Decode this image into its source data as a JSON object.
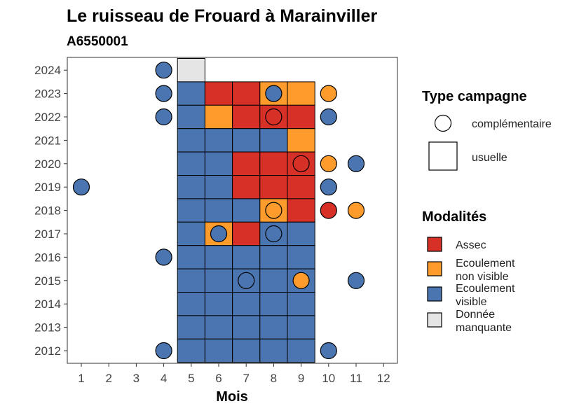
{
  "chart_data": {
    "type": "heatmap",
    "title": "Le ruisseau de Frouard à Marainviller",
    "subtitle": "A6550001",
    "xlabel": "Mois",
    "ylabel": "",
    "x_ticks": [
      "1",
      "2",
      "3",
      "4",
      "5",
      "6",
      "7",
      "8",
      "9",
      "10",
      "11",
      "12"
    ],
    "y_ticks": [
      "2012",
      "2013",
      "2014",
      "2015",
      "2016",
      "2017",
      "2018",
      "2019",
      "2020",
      "2021",
      "2022",
      "2023",
      "2024"
    ],
    "xlim": [
      1,
      12
    ],
    "ylim": [
      2012,
      2024
    ],
    "colors": {
      "Assec": "#d73027",
      "Ecoulement non visible": "#fd9c2c",
      "Ecoulement visible": "#4a75b0",
      "Donnée manquante": "#e5e5e5"
    },
    "usual_campaign": [
      {
        "year": 2024,
        "cells": [
          [
            "5",
            "Donnée manquante"
          ]
        ]
      },
      {
        "year": 2023,
        "cells": [
          [
            "5",
            "Ecoulement visible"
          ],
          [
            "6",
            "Assec"
          ],
          [
            "7",
            "Assec"
          ],
          [
            "8",
            "Ecoulement non visible"
          ],
          [
            "9",
            "Ecoulement non visible"
          ]
        ]
      },
      {
        "year": 2022,
        "cells": [
          [
            "5",
            "Ecoulement visible"
          ],
          [
            "6",
            "Ecoulement non visible"
          ],
          [
            "7",
            "Assec"
          ],
          [
            "8",
            "Assec"
          ],
          [
            "9",
            "Assec"
          ]
        ]
      },
      {
        "year": 2021,
        "cells": [
          [
            "5",
            "Ecoulement visible"
          ],
          [
            "6",
            "Ecoulement visible"
          ],
          [
            "7",
            "Ecoulement visible"
          ],
          [
            "8",
            "Ecoulement visible"
          ],
          [
            "9",
            "Ecoulement non visible"
          ]
        ]
      },
      {
        "year": 2020,
        "cells": [
          [
            "5",
            "Ecoulement visible"
          ],
          [
            "6",
            "Ecoulement visible"
          ],
          [
            "7",
            "Assec"
          ],
          [
            "8",
            "Assec"
          ],
          [
            "9",
            "Assec"
          ]
        ]
      },
      {
        "year": 2019,
        "cells": [
          [
            "5",
            "Ecoulement visible"
          ],
          [
            "6",
            "Ecoulement visible"
          ],
          [
            "7",
            "Assec"
          ],
          [
            "8",
            "Assec"
          ],
          [
            "9",
            "Assec"
          ]
        ]
      },
      {
        "year": 2018,
        "cells": [
          [
            "5",
            "Ecoulement visible"
          ],
          [
            "6",
            "Ecoulement visible"
          ],
          [
            "7",
            "Ecoulement visible"
          ],
          [
            "8",
            "Ecoulement non visible"
          ],
          [
            "9",
            "Assec"
          ]
        ]
      },
      {
        "year": 2017,
        "cells": [
          [
            "5",
            "Ecoulement visible"
          ],
          [
            "6",
            "Ecoulement non visible"
          ],
          [
            "7",
            "Assec"
          ],
          [
            "8",
            "Ecoulement visible"
          ],
          [
            "9",
            "Ecoulement visible"
          ]
        ]
      },
      {
        "year": 2016,
        "cells": [
          [
            "5",
            "Ecoulement visible"
          ],
          [
            "6",
            "Ecoulement visible"
          ],
          [
            "7",
            "Ecoulement visible"
          ],
          [
            "8",
            "Ecoulement visible"
          ],
          [
            "9",
            "Ecoulement visible"
          ]
        ]
      },
      {
        "year": 2015,
        "cells": [
          [
            "5",
            "Ecoulement visible"
          ],
          [
            "6",
            "Ecoulement visible"
          ],
          [
            "7",
            "Ecoulement visible"
          ],
          [
            "8",
            "Ecoulement visible"
          ],
          [
            "9",
            "Ecoulement visible"
          ]
        ]
      },
      {
        "year": 2014,
        "cells": [
          [
            "5",
            "Ecoulement visible"
          ],
          [
            "6",
            "Ecoulement visible"
          ],
          [
            "7",
            "Ecoulement visible"
          ],
          [
            "8",
            "Ecoulement visible"
          ],
          [
            "9",
            "Ecoulement visible"
          ]
        ]
      },
      {
        "year": 2013,
        "cells": [
          [
            "5",
            "Ecoulement visible"
          ],
          [
            "6",
            "Ecoulement visible"
          ],
          [
            "7",
            "Ecoulement visible"
          ],
          [
            "8",
            "Ecoulement visible"
          ],
          [
            "9",
            "Ecoulement visible"
          ]
        ]
      },
      {
        "year": 2012,
        "cells": [
          [
            "5",
            "Ecoulement visible"
          ],
          [
            "6",
            "Ecoulement visible"
          ],
          [
            "7",
            "Ecoulement visible"
          ],
          [
            "8",
            "Ecoulement visible"
          ],
          [
            "9",
            "Ecoulement visible"
          ]
        ]
      }
    ],
    "complementary_campaign": [
      {
        "year": 2024,
        "month": 4,
        "status": "Ecoulement visible"
      },
      {
        "year": 2023,
        "month": 4,
        "status": "Ecoulement visible"
      },
      {
        "year": 2023,
        "month": 8,
        "status": "Ecoulement visible"
      },
      {
        "year": 2023,
        "month": 10,
        "status": "Ecoulement non visible"
      },
      {
        "year": 2022,
        "month": 4,
        "status": "Ecoulement visible"
      },
      {
        "year": 2022,
        "month": 8,
        "status": "Assec"
      },
      {
        "year": 2022,
        "month": 10,
        "status": "Ecoulement visible"
      },
      {
        "year": 2020,
        "month": 9,
        "status": "Assec"
      },
      {
        "year": 2020,
        "month": 10,
        "status": "Ecoulement non visible"
      },
      {
        "year": 2020,
        "month": 11,
        "status": "Ecoulement visible"
      },
      {
        "year": 2019,
        "month": 1,
        "status": "Ecoulement visible"
      },
      {
        "year": 2019,
        "month": 10,
        "status": "Ecoulement visible"
      },
      {
        "year": 2018,
        "month": 8,
        "status": "Ecoulement non visible"
      },
      {
        "year": 2018,
        "month": 10,
        "status": "Assec"
      },
      {
        "year": 2018,
        "month": 11,
        "status": "Ecoulement non visible"
      },
      {
        "year": 2017,
        "month": 6,
        "status": "Ecoulement visible"
      },
      {
        "year": 2017,
        "month": 8,
        "status": "Ecoulement visible"
      },
      {
        "year": 2016,
        "month": 4,
        "status": "Ecoulement visible"
      },
      {
        "year": 2015,
        "month": 7,
        "status": "Ecoulement visible"
      },
      {
        "year": 2015,
        "month": 9,
        "status": "Ecoulement non visible"
      },
      {
        "year": 2015,
        "month": 11,
        "status": "Ecoulement visible"
      },
      {
        "year": 2012,
        "month": 4,
        "status": "Ecoulement visible"
      },
      {
        "year": 2012,
        "month": 10,
        "status": "Ecoulement visible"
      }
    ],
    "legend": {
      "type_title": "Type campagne",
      "type_entries": [
        "complémentaire",
        "usuelle"
      ],
      "mod_title": "Modalités",
      "mod_entries": [
        {
          "lines": [
            "Assec"
          ],
          "key": "Assec"
        },
        {
          "lines": [
            "Ecoulement",
            "non visible"
          ],
          "key": "Ecoulement non visible"
        },
        {
          "lines": [
            "Ecoulement",
            "visible"
          ],
          "key": "Ecoulement visible"
        },
        {
          "lines": [
            "Donnée",
            "manquante"
          ],
          "key": "Donnée manquante"
        }
      ],
      "placement": "right"
    }
  }
}
